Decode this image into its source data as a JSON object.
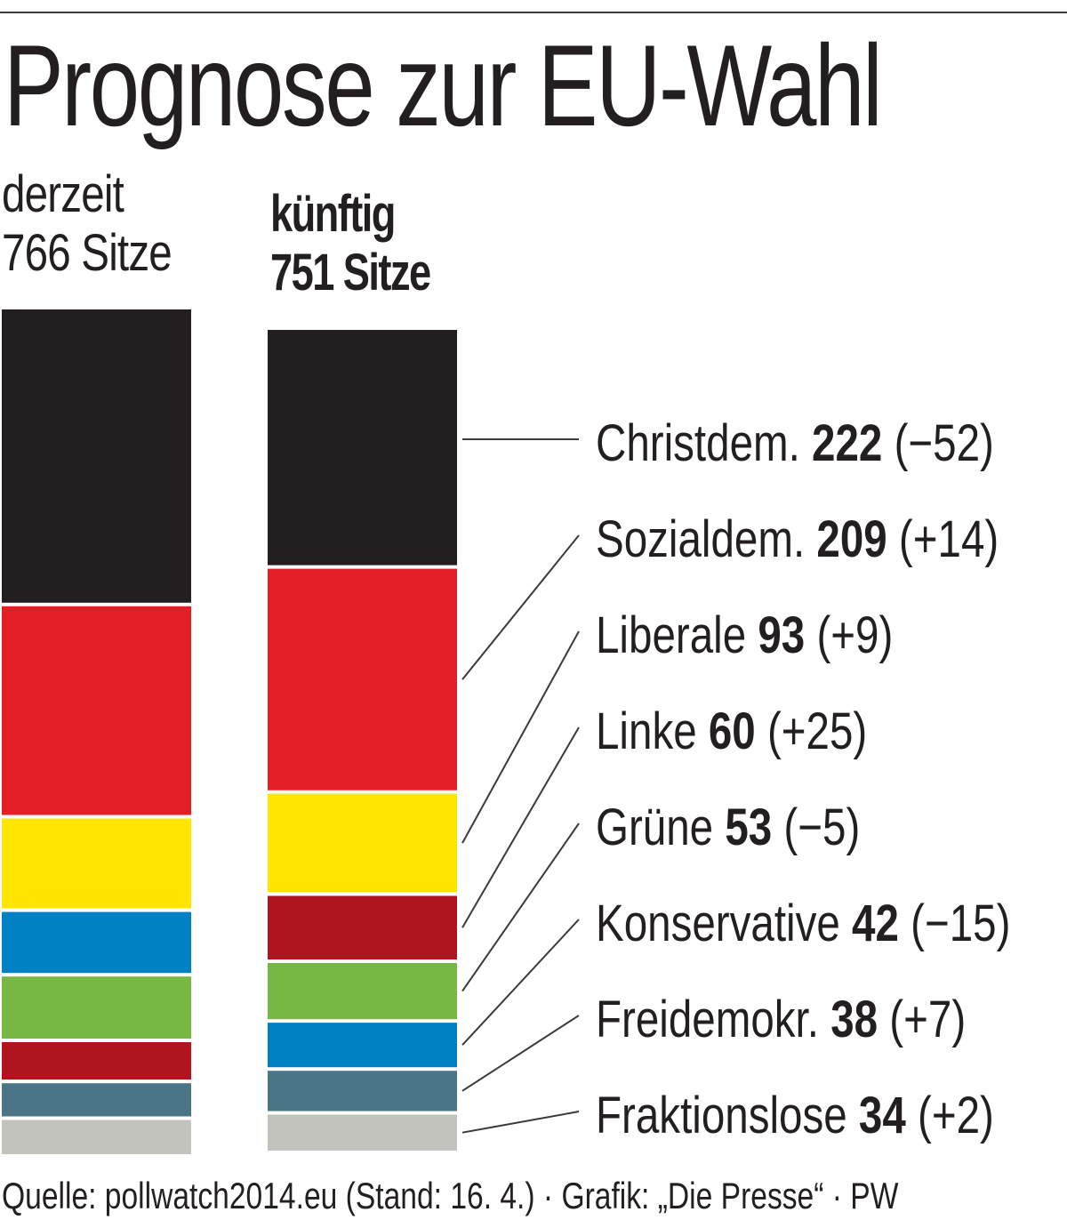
{
  "chart_data": {
    "type": "bar",
    "title": "Prognose zur EU-Wahl",
    "stacked": true,
    "columns": [
      {
        "label": "derzeit",
        "total_label": "766 Sitze",
        "bold": false
      },
      {
        "label": "künftig",
        "total_label": "751 Sitze",
        "bold": true
      }
    ],
    "series": [
      {
        "name": "Christdem.",
        "color": "#231f20",
        "current": 274,
        "future": 222,
        "future_text": "222",
        "change_text": "(−52)"
      },
      {
        "name": "Sozialdem.",
        "color": "#e31e24",
        "current": 195,
        "future": 209,
        "future_text": "209",
        "change_text": "(+14)"
      },
      {
        "name": "Liberale",
        "color": "#ffe500",
        "current": 84,
        "future": 93,
        "future_text": "93",
        "change_text": "(+9)"
      },
      {
        "name": "Linke",
        "color": "#b0151f",
        "current": 35,
        "future": 60,
        "future_text": "60",
        "change_text": "(+25)"
      },
      {
        "name": "Grüne",
        "color": "#76b843",
        "current": 58,
        "future": 53,
        "future_text": "53",
        "change_text": "(−5)"
      },
      {
        "name": "Konservative",
        "color": "#0081c3",
        "current": 57,
        "future": 42,
        "future_text": "42",
        "change_text": "(−15)"
      },
      {
        "name": "Freidemokr.",
        "color": "#4b7586",
        "current": 31,
        "future": 38,
        "future_text": "38",
        "change_text": "(+7)"
      },
      {
        "name": "Fraktionslose",
        "color": "#c3c3be",
        "current": 32,
        "future": 34,
        "future_text": "34",
        "change_text": "(+2)"
      }
    ],
    "current_stack_order": [
      "Christdem.",
      "Sozialdem.",
      "Liberale",
      "Konservative",
      "Grüne",
      "Linke",
      "Freidemokr.",
      "Fraktionslose"
    ],
    "future_stack_order": [
      "Christdem.",
      "Sozialdem.",
      "Liberale",
      "Linke",
      "Grüne",
      "Konservative",
      "Freidemokr.",
      "Fraktionslose"
    ]
  },
  "source": "Quelle: pollwatch2014.eu (Stand: 16. 4.) · Grafik: „Die Presse“ · PW"
}
